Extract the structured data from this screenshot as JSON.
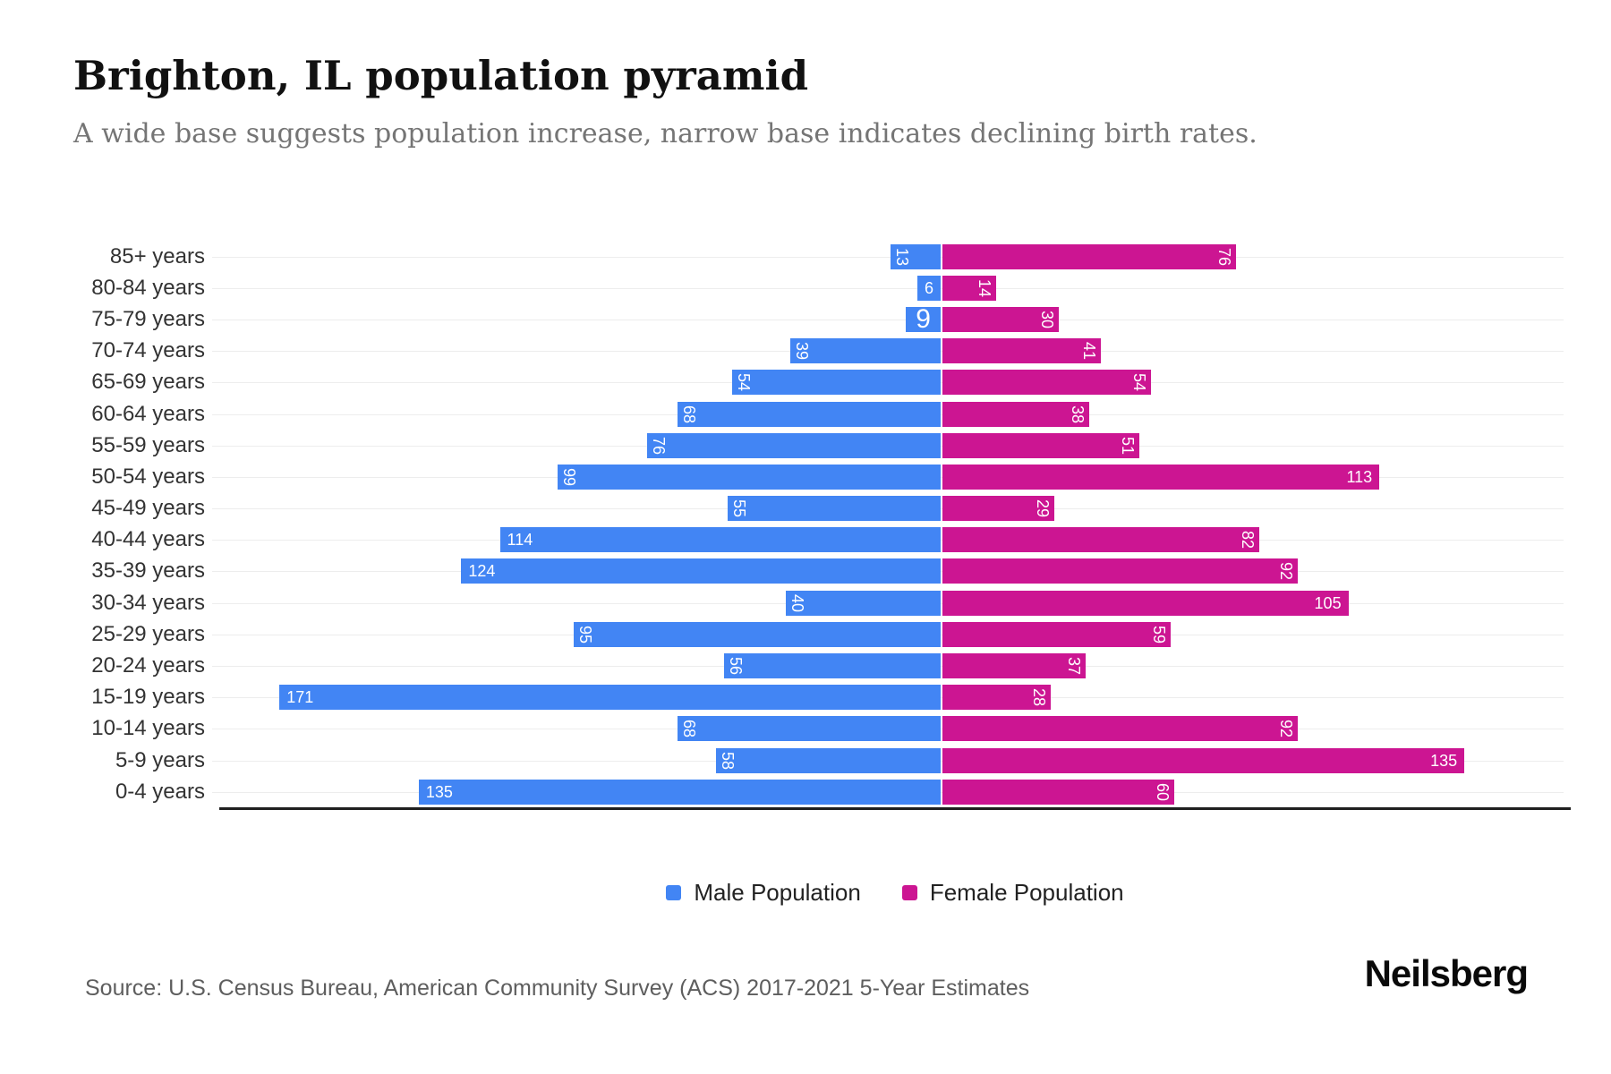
{
  "title": "Brighton, IL population pyramid",
  "subtitle": "A wide base suggests population increase, narrow base indicates declining birth rates.",
  "legend": {
    "male_label": "Male Population",
    "female_label": "Female Population"
  },
  "source": "Source: U.S. Census Bureau, American Community Survey (ACS) 2017-2021 5-Year Estimates",
  "brand": "Neilsberg",
  "colors": {
    "male": "#4285f4",
    "female": "#cc1592",
    "gridline": "#ededed",
    "axis": "#1f1f1f"
  },
  "chart_data": {
    "type": "bar",
    "subtype": "population-pyramid",
    "orientation": "horizontal",
    "title": "Brighton, IL population pyramid",
    "xlabel": "",
    "ylabel": "",
    "grid": "light horizontal gridlines per age row",
    "legend_position": "bottom-center",
    "categories": [
      "85+ years",
      "80-84 years",
      "75-79 years",
      "70-74 years",
      "65-69 years",
      "60-64 years",
      "55-59 years",
      "50-54 years",
      "45-49 years",
      "40-44 years",
      "35-39 years",
      "30-34 years",
      "25-29 years",
      "20-24 years",
      "15-19 years",
      "10-14 years",
      "5-9 years",
      "0-4 years"
    ],
    "series": [
      {
        "name": "Male Population",
        "side": "left",
        "color": "#4285f4",
        "values": [
          13,
          6,
          9,
          39,
          54,
          68,
          76,
          99,
          55,
          114,
          124,
          40,
          95,
          56,
          171,
          68,
          58,
          135
        ]
      },
      {
        "name": "Female Population",
        "side": "right",
        "color": "#cc1592",
        "values": [
          76,
          14,
          30,
          41,
          54,
          38,
          51,
          113,
          29,
          82,
          92,
          105,
          59,
          37,
          28,
          92,
          135,
          60
        ]
      }
    ],
    "axis_range_male": [
      0,
      188
    ],
    "axis_range_female": [
      0,
      161
    ]
  }
}
